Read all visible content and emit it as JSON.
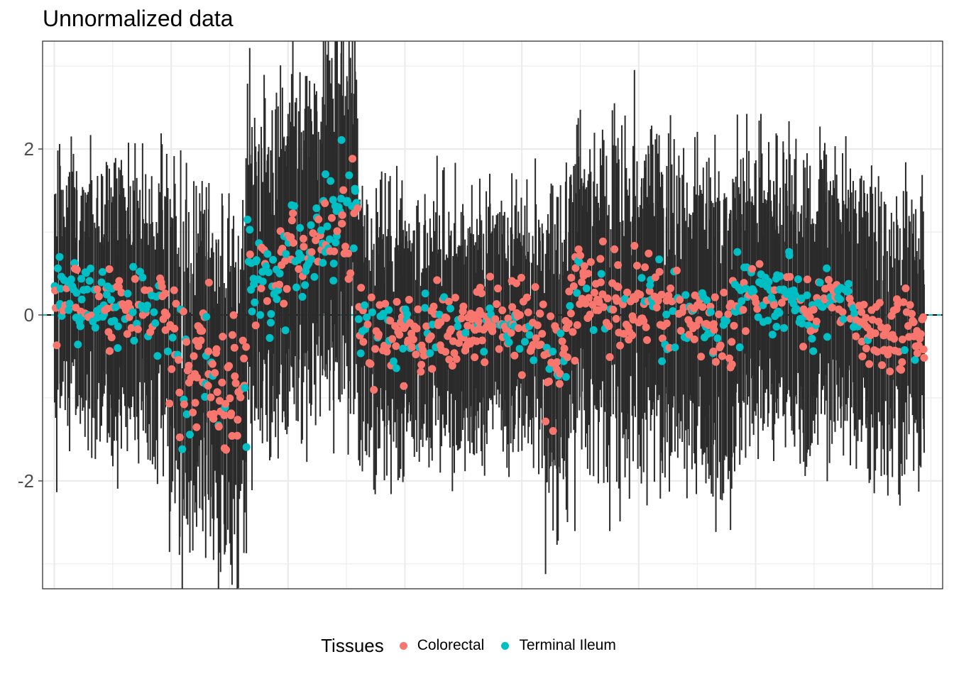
{
  "chart_data": {
    "type": "scatter",
    "title": "Unnormalized data",
    "xlabel": "",
    "ylabel": "",
    "xlim": [
      -10,
      760
    ],
    "ylim": [
      -3.3,
      3.3
    ],
    "yticks": [
      -2,
      0,
      2
    ],
    "ytick_labels": [
      "-2",
      "0",
      "2"
    ],
    "reference_lines": [
      {
        "y": 0,
        "color": "#00BFC4",
        "style": "dashed"
      }
    ],
    "grid": true,
    "legend": {
      "title": "Tissues",
      "position": "bottom"
    },
    "series": [
      {
        "name": "Colorectal",
        "color": "#F8766D"
      },
      {
        "name": "Terminal Ileum",
        "color": "#00BFC4"
      }
    ],
    "segments": [
      {
        "start": 0,
        "end": 45,
        "mean": 0.2,
        "spread": 0.55,
        "whisker": 1.2,
        "ti_frac": 0.8
      },
      {
        "start": 45,
        "end": 95,
        "mean": 0.1,
        "spread": 0.5,
        "whisker": 1.3,
        "ti_frac": 0.45
      },
      {
        "start": 95,
        "end": 135,
        "mean": -0.6,
        "spread": 0.8,
        "whisker": 1.5,
        "ti_frac": 0.25
      },
      {
        "start": 135,
        "end": 165,
        "mean": -0.9,
        "spread": 0.9,
        "whisker": 1.6,
        "ti_frac": 0.15
      },
      {
        "start": 165,
        "end": 200,
        "mean": 0.5,
        "spread": 0.6,
        "whisker": 1.5,
        "ti_frac": 0.7
      },
      {
        "start": 200,
        "end": 230,
        "mean": 0.9,
        "spread": 0.6,
        "whisker": 1.6,
        "ti_frac": 0.6
      },
      {
        "start": 230,
        "end": 260,
        "mean": 1.2,
        "spread": 0.7,
        "whisker": 1.8,
        "ti_frac": 0.5
      },
      {
        "start": 260,
        "end": 300,
        "mean": -0.2,
        "spread": 0.45,
        "whisker": 1.2,
        "ti_frac": 0.35
      },
      {
        "start": 300,
        "end": 360,
        "mean": -0.2,
        "spread": 0.45,
        "whisker": 1.1,
        "ti_frac": 0.2
      },
      {
        "start": 360,
        "end": 420,
        "mean": -0.1,
        "spread": 0.45,
        "whisker": 1.1,
        "ti_frac": 0.25
      },
      {
        "start": 420,
        "end": 440,
        "mean": -0.6,
        "spread": 0.7,
        "whisker": 1.5,
        "ti_frac": 0.3
      },
      {
        "start": 440,
        "end": 470,
        "mean": 0.2,
        "spread": 0.5,
        "whisker": 1.4,
        "ti_frac": 0.15
      },
      {
        "start": 470,
        "end": 520,
        "mean": 0.1,
        "spread": 0.6,
        "whisker": 1.5,
        "ti_frac": 0.2
      },
      {
        "start": 520,
        "end": 580,
        "mean": -0.1,
        "spread": 0.55,
        "whisker": 1.4,
        "ti_frac": 0.3
      },
      {
        "start": 580,
        "end": 640,
        "mean": 0.2,
        "spread": 0.45,
        "whisker": 1.3,
        "ti_frac": 0.75
      },
      {
        "start": 640,
        "end": 690,
        "mean": 0.1,
        "spread": 0.4,
        "whisker": 1.3,
        "ti_frac": 0.55
      },
      {
        "start": 690,
        "end": 745,
        "mean": -0.2,
        "spread": 0.45,
        "whisker": 1.2,
        "ti_frac": 0.05
      }
    ]
  }
}
